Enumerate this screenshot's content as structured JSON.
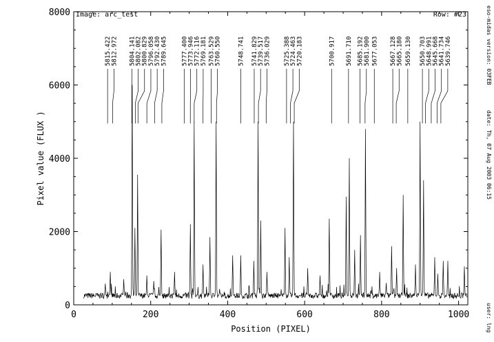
{
  "chart_data": {
    "type": "line",
    "title": "",
    "image_label": "Image: arc_test",
    "row_label": "Row: #23",
    "xlabel": "Position (PIXEL)",
    "ylabel": "Pixel value (FLUX )",
    "xlim": [
      0,
      1024
    ],
    "ylim": [
      0,
      8000
    ],
    "x_ticks": [
      0,
      200,
      400,
      600,
      800,
      1000
    ],
    "y_ticks": [
      0,
      2000,
      4000,
      6000,
      8000
    ],
    "grid": false,
    "series": [
      {
        "baseline": 250,
        "peaks": [
          [
            82,
            580
          ],
          [
            95,
            900
          ],
          [
            130,
            700
          ],
          [
            152,
            6000
          ],
          [
            159,
            2100
          ],
          [
            166,
            3550
          ],
          [
            190,
            800
          ],
          [
            208,
            650
          ],
          [
            227,
            2050
          ],
          [
            262,
            900
          ],
          [
            303,
            2200
          ],
          [
            313,
            5000
          ],
          [
            336,
            1100
          ],
          [
            354,
            1850
          ],
          [
            370,
            5000
          ],
          [
            413,
            1350
          ],
          [
            434,
            1350
          ],
          [
            468,
            1200
          ],
          [
            479,
            5000
          ],
          [
            486,
            2300
          ],
          [
            502,
            900
          ],
          [
            549,
            2100
          ],
          [
            560,
            1300
          ],
          [
            571,
            5000
          ],
          [
            608,
            1000
          ],
          [
            640,
            800
          ],
          [
            664,
            2350
          ],
          [
            708,
            2950
          ],
          [
            716,
            4000
          ],
          [
            730,
            1500
          ],
          [
            745,
            1900
          ],
          [
            758,
            4800
          ],
          [
            795,
            900
          ],
          [
            812,
            600
          ],
          [
            826,
            1600
          ],
          [
            839,
            1000
          ],
          [
            856,
            3000
          ],
          [
            888,
            1100
          ],
          [
            900,
            5000
          ],
          [
            909,
            3400
          ],
          [
            938,
            1300
          ],
          [
            946,
            850
          ],
          [
            960,
            1200
          ],
          [
            972,
            1200
          ],
          [
            1015,
            1050
          ]
        ]
      }
    ],
    "line_ids": [
      {
        "label": "5815.422",
        "x": 88
      },
      {
        "label": "5812.972",
        "x": 101
      },
      {
        "label": "5804.141",
        "x": 151
      },
      {
        "label": "5802.082",
        "x": 160
      },
      {
        "label": "5800.829",
        "x": 167
      },
      {
        "label": "5796.058",
        "x": 190
      },
      {
        "label": "5792.430",
        "x": 210
      },
      {
        "label": "5789.645",
        "x": 229
      },
      {
        "label": "5777.400",
        "x": 287
      },
      {
        "label": "5773.946",
        "x": 303
      },
      {
        "label": "5772.116",
        "x": 313
      },
      {
        "label": "5769.181",
        "x": 336
      },
      {
        "label": "5763.529",
        "x": 357
      },
      {
        "label": "5760.550",
        "x": 371
      },
      {
        "label": "5748.741",
        "x": 434
      },
      {
        "label": "5741.829",
        "x": 469
      },
      {
        "label": "5739.517",
        "x": 480
      },
      {
        "label": "5736.029",
        "x": 500
      },
      {
        "label": "5725.388",
        "x": 553
      },
      {
        "label": "5724.463",
        "x": 563
      },
      {
        "label": "5720.183",
        "x": 573
      },
      {
        "label": "5700.917",
        "x": 670
      },
      {
        "label": "5691.710",
        "x": 714
      },
      {
        "label": "5685.192",
        "x": 744
      },
      {
        "label": "5681.900",
        "x": 757
      },
      {
        "label": "5677.053",
        "x": 781
      },
      {
        "label": "5667.128",
        "x": 829
      },
      {
        "label": "5665.180",
        "x": 838
      },
      {
        "label": "5659.130",
        "x": 868
      },
      {
        "label": "5650.703",
        "x": 906
      },
      {
        "label": "5648.991",
        "x": 914
      },
      {
        "label": "5645.668",
        "x": 929
      },
      {
        "label": "5641.734",
        "x": 944
      },
      {
        "label": "5639.746",
        "x": 954
      }
    ]
  },
  "side_labels": {
    "version": "eso-midas version: 03FEB",
    "date": "date: Th, 07 Aug 2003 06:15",
    "user": "user: lng"
  }
}
